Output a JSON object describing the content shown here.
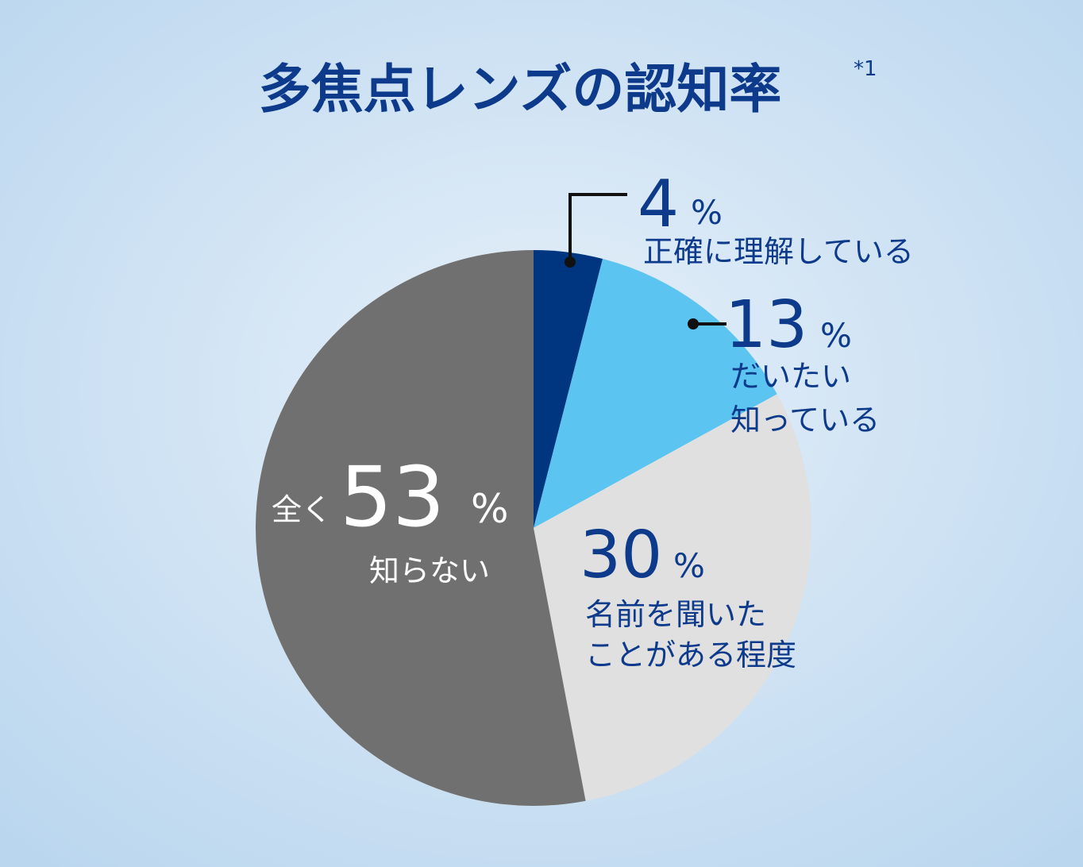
{
  "chart_data": {
    "type": "pie",
    "title": "多焦点レンズの認知率",
    "title_note": "*1",
    "unit": "%",
    "values": [
      4,
      13,
      30,
      53
    ],
    "categories": [
      [
        "正確に理解している"
      ],
      [
        "だいたい",
        "知っている"
      ],
      [
        "名前を聞いた",
        "ことがある程度"
      ],
      [
        "全く",
        "知らない"
      ]
    ],
    "colors": [
      "#003580",
      "#5bc4f1",
      "#e0e0e0",
      "#707070"
    ],
    "label_colors": [
      "#0d3a8a",
      "#0d3a8a",
      "#0d3a8a",
      "#ffffff"
    ]
  }
}
